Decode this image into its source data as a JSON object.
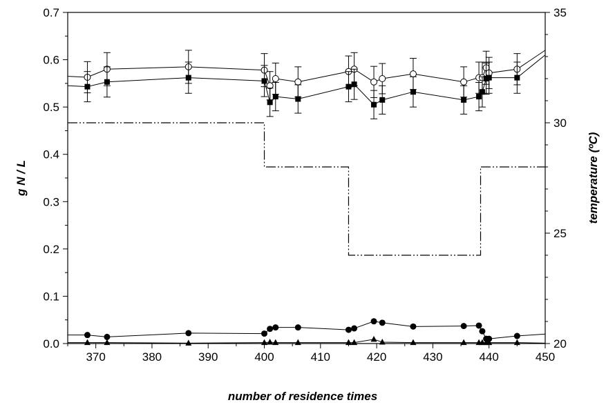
{
  "chart_data": {
    "type": "line",
    "title": "",
    "xlabel": "number of residence times",
    "ylabel": "g N / L",
    "y2label": "temperature (ºC)",
    "xlim": [
      365,
      450
    ],
    "ylim": [
      0,
      0.7
    ],
    "y2lim": [
      20,
      35
    ],
    "x_ticks": [
      370,
      380,
      390,
      400,
      410,
      420,
      430,
      440,
      450
    ],
    "y_ticks": [
      "0.0",
      "0.1",
      "0.2",
      "0.3",
      "0.4",
      "0.5",
      "0.6",
      "0.7"
    ],
    "y2_ticks": [
      "20",
      "25",
      "30",
      "35"
    ],
    "grid": false,
    "legend": "none",
    "series": [
      {
        "marker": "open-circle",
        "axis": "left",
        "x": [
          365,
          368.5,
          372,
          386.5,
          400,
          401,
          402,
          406,
          415,
          416,
          419.5,
          421,
          426.5,
          435.5,
          438.2,
          438.8,
          439.5,
          440,
          445,
          450
        ],
        "y": [
          0.565,
          0.563,
          0.58,
          0.585,
          0.578,
          0.545,
          0.56,
          0.553,
          0.575,
          0.58,
          0.553,
          0.56,
          0.57,
          0.553,
          0.562,
          0.562,
          0.583,
          0.572,
          0.58,
          0.62
        ],
        "err": [
          0,
          0.033,
          0.035,
          0.035,
          0.035,
          0.03,
          0.033,
          0.032,
          0.033,
          0.035,
          0.033,
          0.032,
          0.033,
          0.032,
          0.033,
          0.033,
          0.035,
          0.033,
          0.033,
          0
        ]
      },
      {
        "marker": "filled-square",
        "axis": "left",
        "x": [
          365,
          368.5,
          372,
          386.5,
          400,
          401,
          402,
          406,
          415,
          416,
          419.5,
          421,
          426.5,
          435.5,
          438.2,
          438.8,
          439.5,
          440,
          445,
          450
        ],
        "y": [
          0.545,
          0.543,
          0.553,
          0.562,
          0.555,
          0.51,
          0.522,
          0.517,
          0.543,
          0.548,
          0.505,
          0.515,
          0.532,
          0.515,
          0.522,
          0.532,
          0.56,
          0.562,
          0.562,
          0.61
        ],
        "err": [
          0,
          0.032,
          0.032,
          0.033,
          0.033,
          0.03,
          0.03,
          0.03,
          0.032,
          0.032,
          0.03,
          0.03,
          0.032,
          0.03,
          0.03,
          0.032,
          0.033,
          0.033,
          0.033,
          0
        ]
      },
      {
        "marker": "filled-circle",
        "axis": "left",
        "x": [
          365,
          368.5,
          372,
          386.5,
          400,
          401,
          402,
          406,
          415,
          416,
          419.5,
          421,
          426.5,
          435.5,
          438.2,
          438.8,
          439.5,
          440,
          445,
          450
        ],
        "y": [
          0.018,
          0.018,
          0.014,
          0.022,
          0.021,
          0.031,
          0.034,
          0.034,
          0.029,
          0.032,
          0.047,
          0.044,
          0.036,
          0.037,
          0.038,
          0.026,
          0.01,
          0.01,
          0.016,
          0.02
        ],
        "err": []
      },
      {
        "marker": "filled-triangle",
        "axis": "left",
        "x": [
          365,
          368.5,
          372,
          386.5,
          400,
          401,
          402,
          406,
          415,
          416,
          419.5,
          421,
          426.5,
          435.5,
          438.2,
          438.8,
          439.5,
          440,
          445,
          450
        ],
        "y": [
          0.002,
          0.002,
          0.002,
          0.001,
          0.002,
          0.003,
          0.002,
          0.002,
          0.002,
          0.002,
          0.009,
          0.003,
          0.002,
          0.002,
          0.002,
          0.002,
          0.002,
          0.002,
          0.002,
          0.001
        ],
        "err": []
      }
    ],
    "temperature_profile": {
      "axis": "right",
      "line_style": "dash-dot-dot",
      "x": [
        365,
        400,
        400,
        415,
        415,
        438.5,
        438.5,
        450
      ],
      "y": [
        30,
        30,
        28,
        28,
        24,
        24,
        28,
        28
      ]
    }
  }
}
